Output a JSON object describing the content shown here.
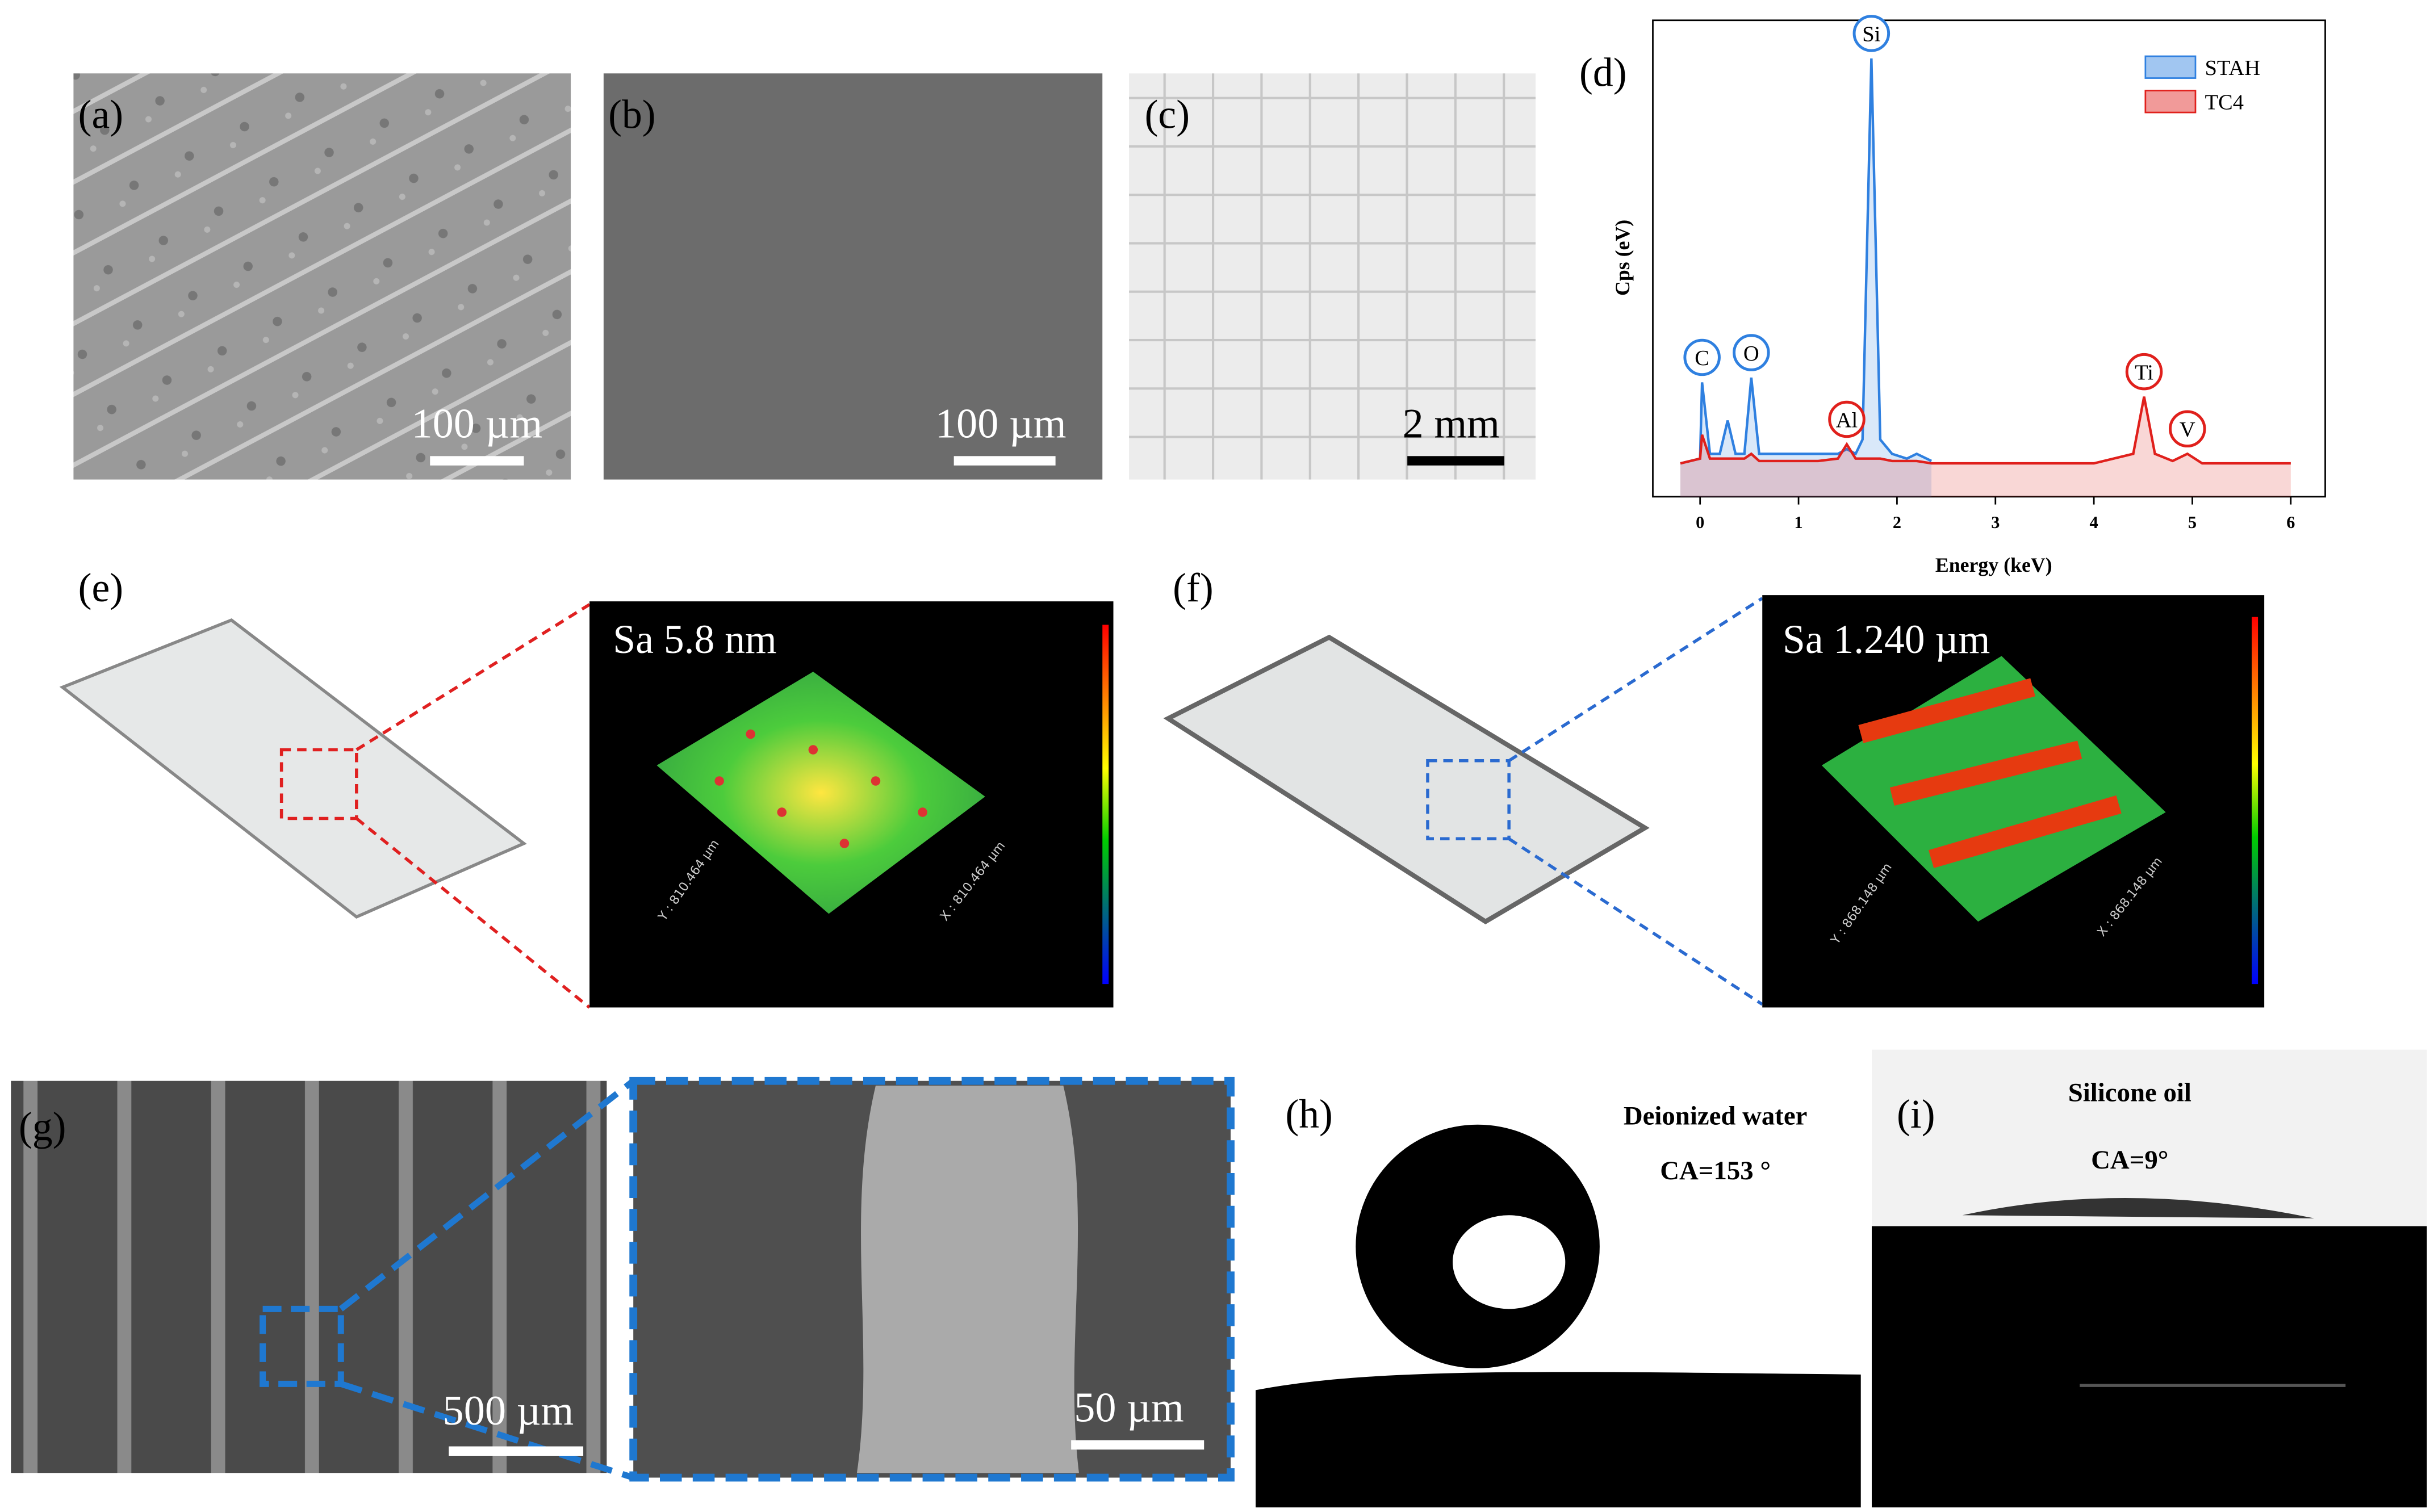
{
  "panels": {
    "a": {
      "label": "(a)",
      "scale": "100 µm"
    },
    "b": {
      "label": "(b)",
      "scale": "100 µm"
    },
    "c": {
      "label": "(c)",
      "scale": "2 mm"
    },
    "e": {
      "label": "(e)",
      "inset_text": "Sa 5.8 nm",
      "axis_y": "Y : 810.464 µm",
      "axis_x": "X : 810.464 µm"
    },
    "f": {
      "label": "(f)",
      "inset_text": "Sa 1.240 µm",
      "axis_y": "Y : 868.148 µm",
      "axis_x": "X : 868.148 µm"
    },
    "g": {
      "label": "(g)",
      "scale": "500 µm",
      "inset_scale": "50 µm"
    },
    "h": {
      "label": "(h)",
      "liquid": "Deionized water",
      "angle": "CA=153 °"
    },
    "i": {
      "label": "(i)",
      "liquid": "Silicone oil",
      "angle": "CA=9°"
    }
  },
  "chart_data": {
    "type": "line",
    "label": "(d)",
    "x_label": "Energy (keV)",
    "y_label": "Cps (eV)",
    "x": [
      -0.2,
      0,
      0.02,
      0.1,
      0.2,
      0.28,
      0.36,
      0.45,
      0.52,
      0.6,
      0.8,
      1.2,
      1.4,
      1.49,
      1.58,
      1.65,
      1.74,
      1.83,
      1.95,
      2.1,
      2.2,
      2.35,
      3,
      4,
      4.4,
      4.51,
      4.62,
      4.8,
      4.95,
      5.1,
      5.5,
      6
    ],
    "series": [
      {
        "name": "STAH",
        "color": "#2f80e0",
        "values": [
          7,
          8,
          24,
          9,
          9,
          16,
          9,
          9,
          25,
          9,
          9,
          9,
          9,
          10,
          9,
          12,
          92,
          12,
          9,
          8,
          9,
          7.5,
          null,
          null,
          null,
          null,
          null,
          null,
          null,
          null,
          null,
          null
        ]
      },
      {
        "name": "TC4",
        "color": "#e0201c",
        "values": [
          7,
          8,
          13,
          8,
          8,
          8,
          8,
          8,
          9,
          7.5,
          7.5,
          7.5,
          8,
          11,
          8,
          8,
          8,
          8,
          7.5,
          7.5,
          7.5,
          7,
          7,
          7,
          9,
          21,
          9,
          7.5,
          9,
          7,
          7,
          7
        ]
      }
    ],
    "annotations": [
      {
        "text": "C",
        "x": 0.02,
        "series": 0
      },
      {
        "text": "O",
        "x": 0.52,
        "series": 0
      },
      {
        "text": "Si",
        "x": 1.74,
        "series": 0
      },
      {
        "text": "Al",
        "x": 1.49,
        "series": 1
      },
      {
        "text": "Ti",
        "x": 4.51,
        "series": 1
      },
      {
        "text": "V",
        "x": 4.95,
        "series": 1
      }
    ],
    "xlim": [
      -0.48,
      6.35
    ],
    "ylim": [
      0,
      100
    ],
    "xticks": [
      0,
      1,
      2,
      3,
      4,
      5,
      6
    ],
    "legend": "upper right"
  }
}
